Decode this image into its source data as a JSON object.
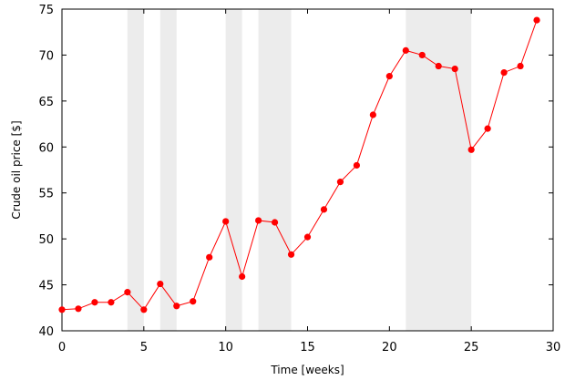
{
  "chart_data": {
    "type": "line",
    "title": "",
    "xlabel": "Time [weeks]",
    "ylabel": "Crude oil price [$]",
    "xlim": [
      0,
      30
    ],
    "ylim": [
      40,
      75
    ],
    "x_ticks": [
      0,
      5,
      10,
      15,
      20,
      25,
      30
    ],
    "y_ticks": [
      40,
      45,
      50,
      55,
      60,
      65,
      70,
      75
    ],
    "grid": false,
    "legend": "none",
    "shaded_intervals": [
      [
        4,
        5
      ],
      [
        6,
        7
      ],
      [
        10,
        11
      ],
      [
        12,
        14
      ],
      [
        21,
        25
      ]
    ],
    "series": [
      {
        "color": "#ff0000",
        "marker": "circle",
        "x": [
          0,
          1,
          2,
          3,
          4,
          5,
          6,
          7,
          8,
          9,
          10,
          11,
          12,
          13,
          14,
          15,
          16,
          17,
          18,
          19,
          20,
          21,
          22,
          23,
          24,
          25,
          26,
          27,
          28,
          29
        ],
        "y": [
          42.3,
          42.4,
          43.1,
          43.1,
          44.2,
          42.3,
          45.1,
          42.7,
          43.2,
          48.0,
          51.9,
          45.9,
          52.0,
          51.8,
          48.3,
          50.2,
          53.2,
          56.2,
          58.0,
          63.5,
          67.7,
          70.5,
          70.0,
          68.8,
          68.5,
          59.7,
          62.0,
          68.1,
          68.8,
          73.8
        ]
      }
    ],
    "colors": {
      "shade": "#ececec",
      "line": "#ff0000",
      "axis": "#000000"
    }
  }
}
